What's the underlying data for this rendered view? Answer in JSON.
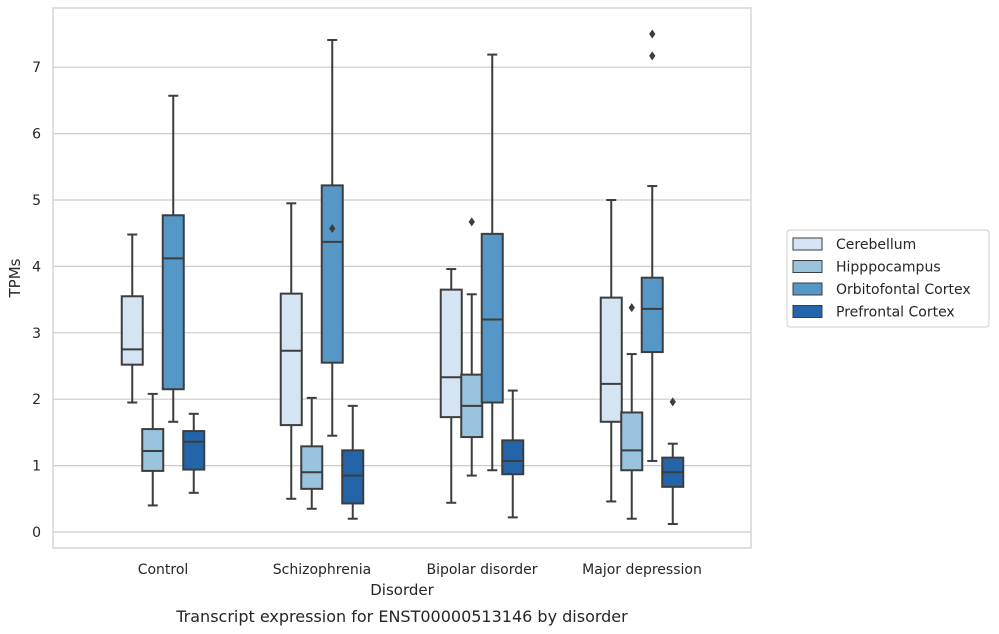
{
  "caption": "Transcript expression for ENST00000513146 by disorder",
  "chart_data": {
    "type": "box",
    "title": "",
    "xlabel": "Disorder",
    "ylabel": "TPMs",
    "ylim": [
      -0.25,
      7.85
    ],
    "yticks": [
      0,
      1,
      2,
      3,
      4,
      5,
      6,
      7
    ],
    "grid": "horizontal",
    "legend_position": "right",
    "categories": [
      "Control",
      "Schizophrenia",
      "Bipolar disorder",
      "Major depression"
    ],
    "series": [
      {
        "name": "Cerebellum",
        "color": "#d4e4f2",
        "boxes": [
          {
            "whislo": 1.95,
            "q1": 2.52,
            "med": 2.75,
            "q3": 3.55,
            "whishi": 4.48,
            "fliers": []
          },
          {
            "whislo": 0.5,
            "q1": 1.61,
            "med": 2.73,
            "q3": 3.59,
            "whishi": 4.95,
            "fliers": []
          },
          {
            "whislo": 0.44,
            "q1": 1.73,
            "med": 2.33,
            "q3": 3.65,
            "whishi": 3.96,
            "fliers": []
          },
          {
            "whislo": 0.46,
            "q1": 1.66,
            "med": 2.23,
            "q3": 3.53,
            "whishi": 5.0,
            "fliers": []
          }
        ]
      },
      {
        "name": "Hipppocampus",
        "color": "#9ac4dd",
        "boxes": [
          {
            "whislo": 0.4,
            "q1": 0.92,
            "med": 1.22,
            "q3": 1.55,
            "whishi": 2.08,
            "fliers": []
          },
          {
            "whislo": 0.35,
            "q1": 0.65,
            "med": 0.9,
            "q3": 1.29,
            "whishi": 2.02,
            "fliers": []
          },
          {
            "whislo": 0.85,
            "q1": 1.43,
            "med": 1.9,
            "q3": 2.37,
            "whishi": 3.58,
            "fliers": [
              4.67
            ]
          },
          {
            "whislo": 0.2,
            "q1": 0.93,
            "med": 1.23,
            "q3": 1.8,
            "whishi": 2.68,
            "fliers": [
              3.38
            ]
          }
        ]
      },
      {
        "name": "Orbitofontal Cortex",
        "color": "#5598c7",
        "boxes": [
          {
            "whislo": 1.66,
            "q1": 2.15,
            "med": 4.12,
            "q3": 4.77,
            "whishi": 6.57,
            "fliers": []
          },
          {
            "whislo": 1.45,
            "q1": 2.55,
            "med": 4.37,
            "q3": 5.22,
            "whishi": 7.41,
            "fliers": [
              4.57
            ]
          },
          {
            "whislo": 0.93,
            "q1": 1.95,
            "med": 3.2,
            "q3": 4.49,
            "whishi": 7.19,
            "fliers": []
          },
          {
            "whislo": 1.07,
            "q1": 2.71,
            "med": 3.36,
            "q3": 3.83,
            "whishi": 5.21,
            "fliers": [
              7.17,
              7.5
            ]
          }
        ]
      },
      {
        "name": "Prefrontal Cortex",
        "color": "#2464a9",
        "boxes": [
          {
            "whislo": 0.59,
            "q1": 0.94,
            "med": 1.36,
            "q3": 1.52,
            "whishi": 1.78,
            "fliers": []
          },
          {
            "whislo": 0.2,
            "q1": 0.43,
            "med": 0.85,
            "q3": 1.23,
            "whishi": 1.9,
            "fliers": []
          },
          {
            "whislo": 0.22,
            "q1": 0.87,
            "med": 1.07,
            "q3": 1.38,
            "whishi": 2.13,
            "fliers": []
          },
          {
            "whislo": 0.12,
            "q1": 0.68,
            "med": 0.9,
            "q3": 1.12,
            "whishi": 1.33,
            "fliers": [
              1.96
            ]
          }
        ]
      }
    ]
  }
}
